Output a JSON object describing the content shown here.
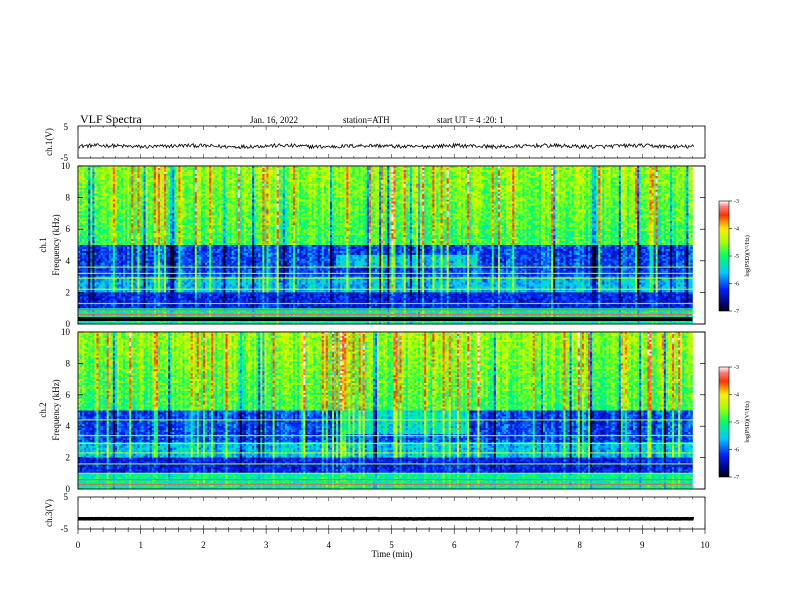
{
  "header": {
    "title": "VLF  Spectra",
    "date": "Jan. 16, 2022",
    "station": "station=ATH",
    "start": "start  UT  =   4  :20: 1"
  },
  "chart_data": [
    {
      "type": "line",
      "name": "ch1-waveform",
      "ylabel": "ch.1(V)",
      "ylim": [
        -5,
        5
      ],
      "yticks": [
        "5",
        "-5"
      ],
      "xlim": [
        0,
        10
      ],
      "baseline": -1.3,
      "amplitude": 0.6,
      "color": "#000000"
    },
    {
      "type": "heatmap",
      "name": "ch1-spectrogram",
      "ylabel": "ch.1\nFrequency (kHz)",
      "ylim": [
        0,
        10
      ],
      "yticks": [
        "0",
        "2",
        "4",
        "6",
        "8",
        "10"
      ],
      "xlim": [
        0,
        9.8
      ],
      "colorbar": {
        "label": "log(PSD)(V²/Hz)",
        "range": [
          -7,
          -3
        ],
        "ticks": [
          "-3",
          "-4",
          "-5",
          "-6",
          "-7"
        ]
      }
    },
    {
      "type": "heatmap",
      "name": "ch2-spectrogram",
      "ylabel": "ch.2\nFrequency (kHz)",
      "ylim": [
        0,
        10
      ],
      "yticks": [
        "0",
        "2",
        "4",
        "6",
        "8",
        "10"
      ],
      "xlim": [
        0,
        9.8
      ],
      "colorbar": {
        "label": "log(PSD)(V²/Hz)",
        "range": [
          -7,
          -3
        ],
        "ticks": [
          "-3",
          "-4",
          "-5",
          "-6",
          "-7"
        ]
      }
    },
    {
      "type": "line",
      "name": "ch3-waveform",
      "ylabel": "ch.3(V)",
      "ylim": [
        -5,
        5
      ],
      "yticks": [
        "5",
        "-5"
      ],
      "xlim": [
        0,
        10
      ],
      "baseline": -1.8,
      "amplitude": 0.05,
      "color": "#000000"
    }
  ],
  "xaxis": {
    "label": "Time  (min)",
    "ticks": [
      "0",
      "1",
      "2",
      "3",
      "4",
      "5",
      "6",
      "7",
      "8",
      "9",
      "10"
    ],
    "range": [
      0,
      10
    ]
  }
}
